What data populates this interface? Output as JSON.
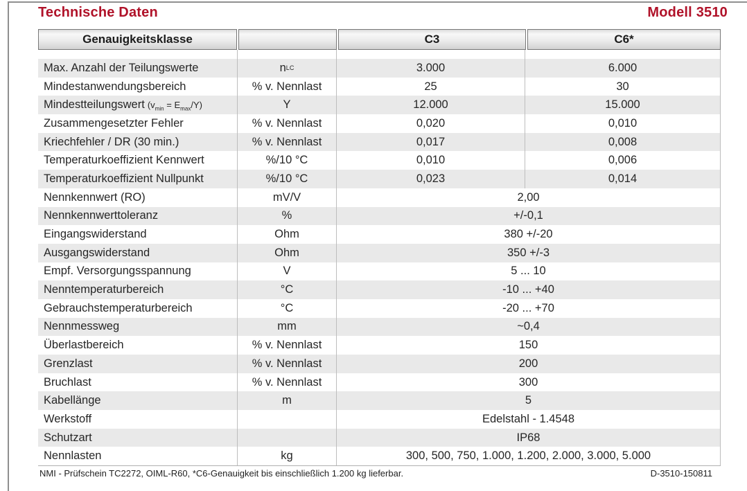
{
  "page": {
    "title": "Technische Daten",
    "model": "Modell 3510",
    "accent_color": "#b01229",
    "footer_left": "NMI - Prüfschein TC2272, OIML-R60, *C6-Genauigkeit bis einschließlich 1.200 kg lieferbar.",
    "footer_right": "D-3510-150811"
  },
  "table": {
    "headers": [
      "Genauigkeitsklasse",
      "",
      "C3",
      "C6*"
    ],
    "rows": [
      {
        "label": "Max. Anzahl der Teilungswerte",
        "unit": "n{sub:LC}",
        "c3": "3.000",
        "c6": "6.000"
      },
      {
        "label": "Mindestanwendungsbereich",
        "unit": "% v. Nennlast",
        "c3": "25",
        "c6": "30"
      },
      {
        "label": "Mindestteilungswert",
        "label_small": "(v{sub:min} = E{sub:max}/Y)",
        "unit": "Y",
        "c3": "12.000",
        "c6": "15.000"
      },
      {
        "label": "Zusammengesetzter Fehler",
        "unit": "% v. Nennlast",
        "c3": "0,020",
        "c6": "0,010"
      },
      {
        "label": "Kriechfehler / DR (30 min.)",
        "unit": "% v. Nennlast",
        "c3": "0,017",
        "c6": "0,008"
      },
      {
        "label": "Temperaturkoeffizient Kennwert",
        "unit": "%/10 °C",
        "c3": "0,010",
        "c6": "0,006"
      },
      {
        "label": "Temperaturkoeffizient Nullpunkt",
        "unit": "%/10 °C",
        "c3": "0,023",
        "c6": "0,014"
      },
      {
        "label": "Nennkennwert (RO)",
        "unit": "mV/V",
        "value": "2,00"
      },
      {
        "label": "Nennkennwerttoleranz",
        "unit": "%",
        "value": "+/-0,1"
      },
      {
        "label": "Eingangswiderstand",
        "unit": "Ohm",
        "value": "380 +/-20"
      },
      {
        "label": "Ausgangswiderstand",
        "unit": "Ohm",
        "value": "350 +/-3"
      },
      {
        "label": "Empf. Versorgungsspannung",
        "unit": "V",
        "value": "5 ... 10"
      },
      {
        "label": "Nenntemperaturbereich",
        "unit": "°C",
        "value": "-10 ... +40"
      },
      {
        "label": "Gebrauchstemperaturbereich",
        "unit": "°C",
        "value": "-20 ... +70"
      },
      {
        "label": "Nennmessweg",
        "unit": "mm",
        "value": "~0,4"
      },
      {
        "label": "Überlastbereich",
        "unit": "% v. Nennlast",
        "value": "150"
      },
      {
        "label": "Grenzlast",
        "unit": "% v. Nennlast",
        "value": "200"
      },
      {
        "label": "Bruchlast",
        "unit": "% v. Nennlast",
        "value": "300"
      },
      {
        "label": "Kabellänge",
        "unit": "m",
        "value": "5"
      },
      {
        "label": "Werkstoff",
        "unit": "",
        "value": "Edelstahl - 1.4548"
      },
      {
        "label": "Schutzart",
        "unit": "",
        "value": "IP68"
      },
      {
        "label": "Nennlasten",
        "unit": "kg",
        "value": "300, 500, 750, 1.000, 1.200, 2.000, 3.000, 5.000"
      }
    ]
  }
}
